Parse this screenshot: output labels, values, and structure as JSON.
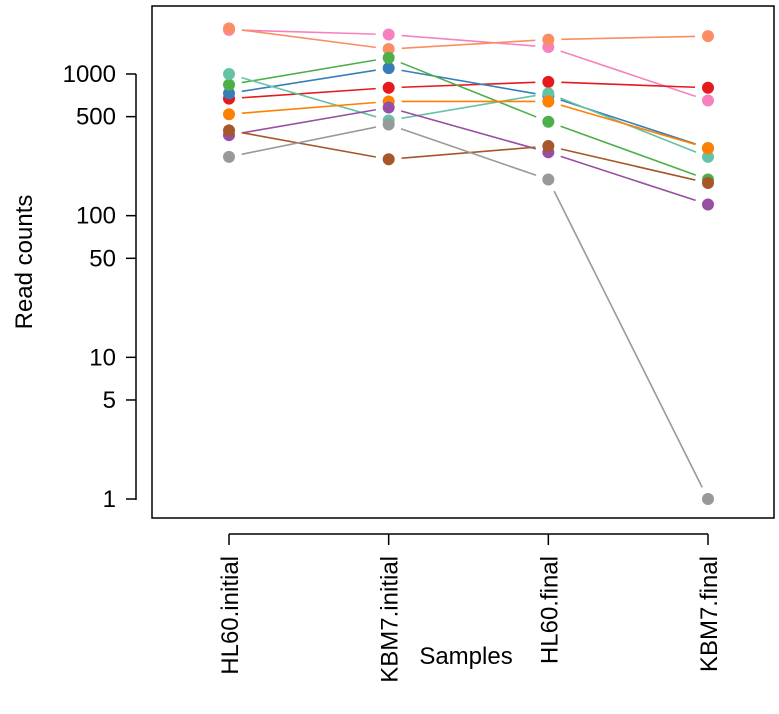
{
  "chart_data": {
    "type": "line",
    "title": "",
    "xlabel": "Samples",
    "ylabel": "Read counts",
    "y_scale": "log",
    "ylim": [
      0.75,
      2500
    ],
    "y_ticks": [
      1,
      5,
      10,
      50,
      100,
      500,
      1000
    ],
    "y_tick_labels": [
      "1",
      "5",
      "10",
      "50",
      "100",
      "500",
      "1000"
    ],
    "categories": [
      "HL60.initial",
      "KBM7.initial",
      "HL60.final",
      "KBM7.final"
    ],
    "grid": false,
    "legend": "none",
    "series": [
      {
        "color": "#F781BF",
        "values": [
          2050,
          1900,
          1550,
          650
        ]
      },
      {
        "color": "#FC8D62",
        "values": [
          2100,
          1500,
          1750,
          1850
        ]
      },
      {
        "color": "#E41A1C",
        "values": [
          670,
          800,
          880,
          800
        ]
      },
      {
        "color": "#377EB8",
        "values": [
          730,
          1100,
          700,
          300
        ]
      },
      {
        "color": "#4DAF4A",
        "values": [
          840,
          1300,
          460,
          180
        ]
      },
      {
        "color": "#66C2A5",
        "values": [
          1000,
          470,
          730,
          260
        ]
      },
      {
        "color": "#FF7F00",
        "values": [
          520,
          640,
          640,
          300
        ]
      },
      {
        "color": "#984EA3",
        "values": [
          370,
          580,
          280,
          120
        ]
      },
      {
        "color": "#A65628",
        "values": [
          400,
          250,
          310,
          170
        ]
      },
      {
        "color": "#999999",
        "values": [
          260,
          440,
          180,
          1
        ]
      }
    ]
  }
}
